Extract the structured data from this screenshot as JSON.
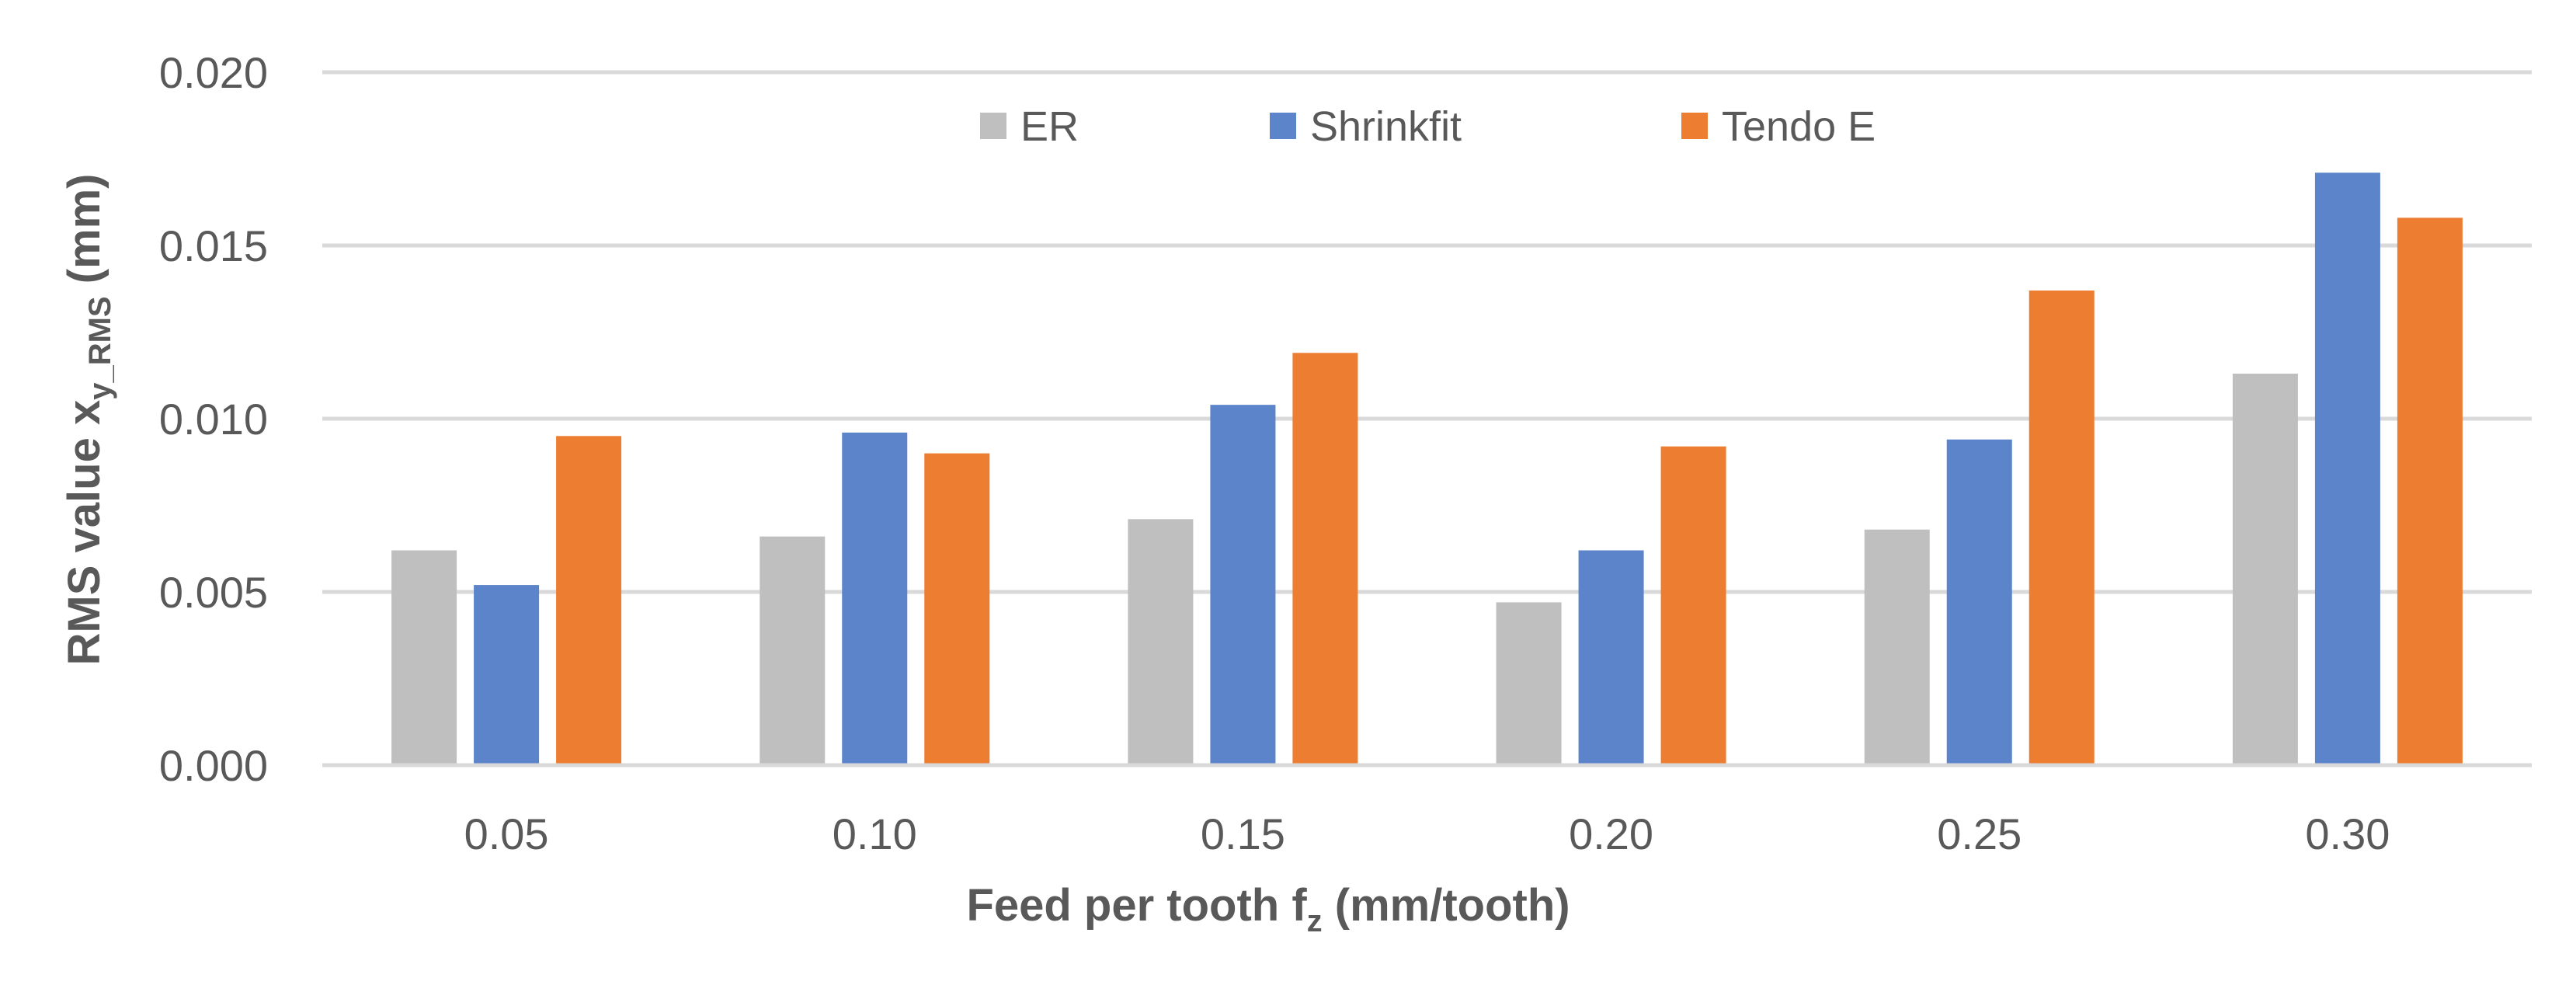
{
  "chart_data": {
    "type": "bar",
    "categories": [
      "0.05",
      "0.10",
      "0.15",
      "0.20",
      "0.25",
      "0.30"
    ],
    "series": [
      {
        "name": "ER",
        "color": "#BFBFBF",
        "values": [
          0.0062,
          0.0066,
          0.0071,
          0.0047,
          0.0068,
          0.0113
        ]
      },
      {
        "name": "Shrinkfit",
        "color": "#5B84CA",
        "values": [
          0.0052,
          0.0096,
          0.0104,
          0.0062,
          0.0094,
          0.0171
        ]
      },
      {
        "name": "Tendo E",
        "color": "#ED7D31",
        "values": [
          0.0095,
          0.009,
          0.0119,
          0.0092,
          0.0137,
          0.0158
        ]
      }
    ],
    "yticks": [
      "0.000",
      "0.005",
      "0.010",
      "0.015",
      "0.020"
    ],
    "ylim": [
      0,
      0.02
    ],
    "grid": true,
    "legend_position": "top-center",
    "xlabel": {
      "main": "Feed per tooth f",
      "sub": "z",
      "unit": " (mm/tooth)"
    },
    "ylabel": {
      "main": "RMS value x",
      "sub": "y_RMS",
      "unit": " (mm)"
    },
    "gridline_color": "#D9D9D9",
    "text_color": "#595959"
  }
}
